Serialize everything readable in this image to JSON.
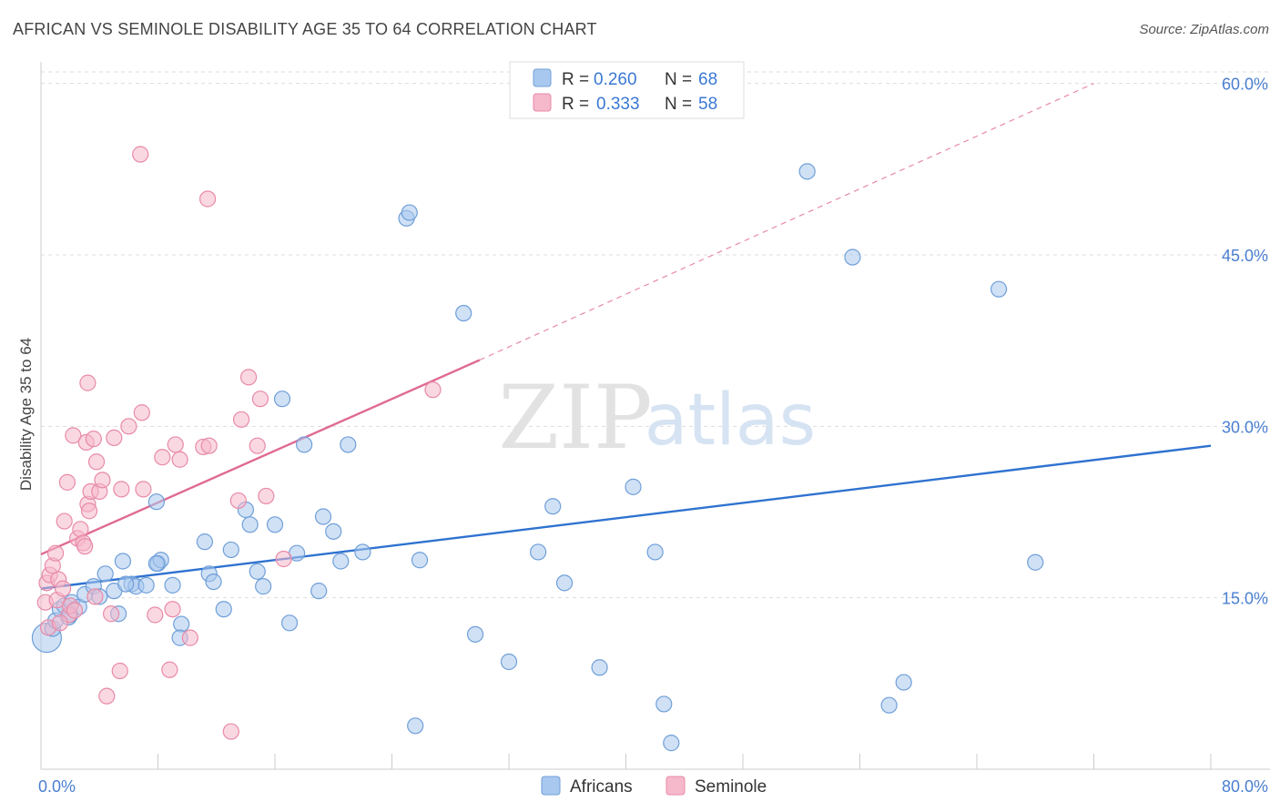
{
  "title": "AFRICAN VS SEMINOLE DISABILITY AGE 35 TO 64 CORRELATION CHART",
  "source": "Source: ZipAtlas.com",
  "watermark": {
    "zip": "ZIP",
    "atlas": "atlas"
  },
  "legend": {
    "africans": {
      "r_label": "R = ",
      "r_value": "0.260",
      "n_label": "N = ",
      "n_value": "68"
    },
    "seminole": {
      "r_label": "R = ",
      "r_value": "0.333",
      "n_label": "N = ",
      "n_value": "58"
    }
  },
  "bottom_legend": {
    "africans": "Africans",
    "seminole": "Seminole"
  },
  "colors": {
    "africans_fill": "#a9c8ef",
    "africans_stroke": "#6f9fd8",
    "africans_line": "#2f72d0",
    "seminole_fill": "#f6b8cb",
    "seminole_stroke": "#e88aa8",
    "seminole_line": "#e06a93",
    "tick": "#4a7fd0",
    "grid": "#dddddd"
  },
  "chart_data": {
    "type": "scatter",
    "title": "AFRICAN VS SEMINOLE DISABILITY AGE 35 TO 64 CORRELATION CHART",
    "xlabel": "",
    "ylabel": "Disability Age 35 to 64",
    "xlim": [
      0,
      80
    ],
    "ylim": [
      0,
      63
    ],
    "x_tick_labels": [
      "0.0%",
      "80.0%"
    ],
    "y_ticks": [
      15,
      30,
      45,
      60
    ],
    "y_tick_labels": [
      "15.0%",
      "30.0%",
      "45.0%",
      "60.0%"
    ],
    "grid": true,
    "series": [
      {
        "name": "Africans",
        "r": 0.26,
        "n": 68,
        "trend": {
          "x": [
            0,
            80
          ],
          "y": [
            15.8,
            28.3
          ],
          "dashed_extension": false
        },
        "points": [
          [
            0.4,
            11.5
          ],
          [
            0.8,
            12.3
          ],
          [
            1.0,
            13.0
          ],
          [
            1.3,
            14.0
          ],
          [
            1.6,
            14.3
          ],
          [
            1.9,
            13.3
          ],
          [
            2.1,
            14.6
          ],
          [
            2.6,
            14.2
          ],
          [
            3.0,
            15.3
          ],
          [
            3.6,
            16.0
          ],
          [
            4.0,
            15.1
          ],
          [
            4.4,
            17.1
          ],
          [
            5.0,
            15.6
          ],
          [
            5.3,
            13.6
          ],
          [
            5.6,
            18.2
          ],
          [
            6.2,
            16.2
          ],
          [
            6.5,
            16.0
          ],
          [
            7.2,
            16.1
          ],
          [
            8.0,
            18.0
          ],
          [
            8.2,
            18.3
          ],
          [
            9.0,
            16.1
          ],
          [
            9.6,
            12.7
          ],
          [
            9.5,
            11.5
          ],
          [
            7.9,
            18.0
          ],
          [
            11.2,
            19.9
          ],
          [
            11.5,
            17.1
          ],
          [
            11.8,
            16.4
          ],
          [
            12.5,
            14.0
          ],
          [
            13.0,
            19.2
          ],
          [
            14.0,
            22.7
          ],
          [
            14.3,
            21.4
          ],
          [
            14.8,
            17.3
          ],
          [
            15.2,
            16.0
          ],
          [
            16.0,
            21.4
          ],
          [
            16.5,
            32.4
          ],
          [
            17.0,
            12.8
          ],
          [
            17.5,
            18.9
          ],
          [
            18.0,
            28.4
          ],
          [
            19.0,
            15.6
          ],
          [
            19.3,
            22.1
          ],
          [
            20.0,
            20.8
          ],
          [
            20.5,
            18.2
          ],
          [
            21.0,
            28.4
          ],
          [
            22.0,
            19.0
          ],
          [
            25.0,
            48.2
          ],
          [
            25.2,
            48.7
          ],
          [
            25.9,
            18.3
          ],
          [
            25.6,
            3.8
          ],
          [
            28.9,
            39.9
          ],
          [
            29.7,
            11.8
          ],
          [
            32.0,
            9.4
          ],
          [
            34.0,
            19.0
          ],
          [
            35.0,
            23.0
          ],
          [
            35.8,
            16.3
          ],
          [
            38.2,
            8.9
          ],
          [
            40.5,
            24.7
          ],
          [
            42.0,
            19.0
          ],
          [
            42.6,
            5.7
          ],
          [
            43.1,
            2.3
          ],
          [
            52.4,
            52.3
          ],
          [
            55.5,
            44.8
          ],
          [
            58.0,
            5.6
          ],
          [
            59.0,
            7.6
          ],
          [
            65.5,
            42.0
          ],
          [
            68.0,
            18.1
          ],
          [
            7.9,
            23.4
          ],
          [
            5.8,
            16.2
          ],
          [
            2.0,
            13.5
          ]
        ]
      },
      {
        "name": "Seminole",
        "r": 0.333,
        "n": 58,
        "trend": {
          "x": [
            0,
            30
          ],
          "y": [
            18.8,
            35.8
          ],
          "dashed_to": [
            72,
            60
          ]
        },
        "points": [
          [
            0.3,
            14.6
          ],
          [
            0.4,
            16.3
          ],
          [
            0.6,
            17.0
          ],
          [
            0.8,
            17.8
          ],
          [
            1.0,
            18.9
          ],
          [
            1.1,
            14.8
          ],
          [
            1.2,
            16.6
          ],
          [
            1.5,
            15.8
          ],
          [
            1.6,
            21.7
          ],
          [
            1.9,
            13.5
          ],
          [
            2.0,
            14.3
          ],
          [
            2.2,
            29.2
          ],
          [
            2.5,
            20.2
          ],
          [
            2.7,
            21.0
          ],
          [
            2.9,
            19.8
          ],
          [
            3.0,
            19.5
          ],
          [
            3.1,
            28.6
          ],
          [
            3.2,
            33.8
          ],
          [
            3.2,
            23.2
          ],
          [
            3.4,
            24.3
          ],
          [
            3.6,
            28.9
          ],
          [
            3.8,
            26.9
          ],
          [
            4.0,
            24.3
          ],
          [
            4.2,
            25.3
          ],
          [
            4.5,
            6.4
          ],
          [
            4.8,
            13.6
          ],
          [
            5.0,
            29.0
          ],
          [
            5.4,
            8.6
          ],
          [
            5.5,
            24.5
          ],
          [
            6.0,
            30.0
          ],
          [
            6.9,
            31.2
          ],
          [
            7.0,
            24.5
          ],
          [
            6.8,
            53.8
          ],
          [
            7.8,
            13.5
          ],
          [
            8.3,
            27.3
          ],
          [
            8.8,
            8.7
          ],
          [
            9.0,
            14.0
          ],
          [
            9.2,
            28.4
          ],
          [
            9.5,
            27.1
          ],
          [
            10.2,
            11.5
          ],
          [
            11.1,
            28.2
          ],
          [
            11.5,
            28.3
          ],
          [
            11.4,
            49.9
          ],
          [
            13.0,
            3.3
          ],
          [
            13.5,
            23.5
          ],
          [
            13.7,
            30.6
          ],
          [
            14.2,
            34.3
          ],
          [
            14.8,
            28.3
          ],
          [
            15.0,
            32.4
          ],
          [
            15.4,
            23.9
          ],
          [
            16.6,
            18.4
          ],
          [
            26.8,
            33.2
          ],
          [
            0.5,
            12.4
          ],
          [
            1.3,
            12.8
          ],
          [
            2.3,
            13.9
          ],
          [
            3.7,
            15.1
          ],
          [
            1.8,
            25.1
          ],
          [
            3.3,
            22.6
          ]
        ]
      }
    ]
  }
}
